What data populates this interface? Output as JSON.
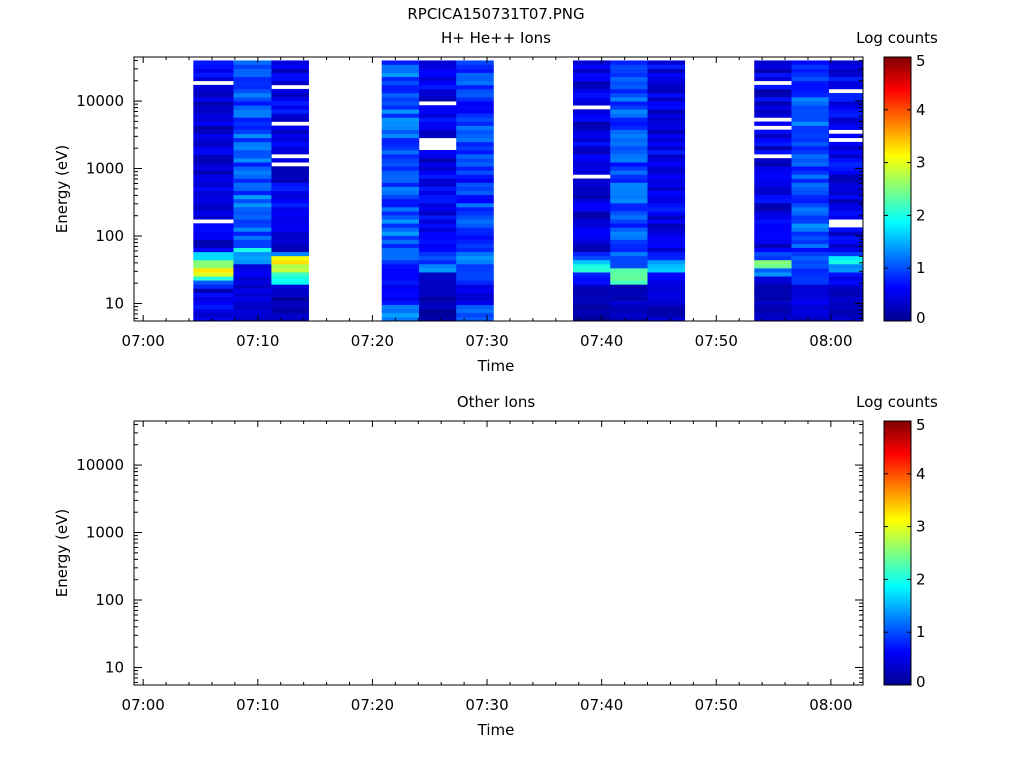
{
  "figure": {
    "title": "RPCICA150731T07.PNG"
  },
  "chart_data": [
    {
      "type": "heatmap",
      "title": "H+ He++ Ions",
      "xlabel": "Time",
      "ylabel": "Energy (eV)",
      "yscale": "log",
      "ylim": [
        5.5,
        45000
      ],
      "xlim": [
        "07:00",
        "08:03"
      ],
      "x_ticks": [
        "07:00",
        "07:10",
        "07:20",
        "07:30",
        "07:40",
        "07:50",
        "08:00"
      ],
      "y_ticks": [
        10,
        100,
        1000,
        10000
      ],
      "colorbar": {
        "label": "Log counts",
        "range": [
          0,
          5
        ],
        "ticks": [
          "0",
          "1",
          "2",
          "3",
          "4",
          "5"
        ]
      },
      "series": [
        {
          "t0": 7.0,
          "t1": 12.6,
          "fill": "dense",
          "base": 0.45,
          "var": 0.3,
          "bright": [
            [
              14.5,
              17.5,
              0.3
            ],
            [
              17.5,
              21,
              0.9
            ],
            [
              21,
              26,
              2.1
            ],
            [
              26,
              34,
              3.1
            ],
            [
              34,
              44,
              2.5
            ],
            [
              44,
              55,
              1.8
            ]
          ],
          "gaps": [
            0.42,
            0.58,
            0.66,
            0.77
          ]
        },
        {
          "t0": 12.6,
          "t1": 17.9,
          "fill": "full",
          "base": 1.05,
          "var": 0.35,
          "bright": [
            [
              5.5,
              9,
              0.3
            ],
            [
              9,
              18,
              0.4
            ],
            [
              18,
              40,
              0.5
            ],
            [
              40,
              55,
              1.3
            ],
            [
              55,
              65,
              1.9
            ]
          ],
          "gaps": []
        },
        {
          "t0": 17.9,
          "t1": 23.1,
          "fill": "dense",
          "base": 0.5,
          "var": 0.3,
          "bright": [
            [
              5.5,
              12,
              0.2
            ],
            [
              12,
              20,
              0.45
            ],
            [
              20,
              30,
              2.0
            ],
            [
              30,
              38,
              2.8
            ],
            [
              38,
              48,
              3.2
            ],
            [
              48,
              60,
              1.2
            ]
          ],
          "gaps": [
            0.55,
            0.62,
            0.71,
            0.8
          ]
        },
        {
          "t0": 33.3,
          "t1": 38.5,
          "fill": "full",
          "base": 1.05,
          "var": 0.35,
          "bright": [
            [
              5.5,
              9,
              1.3
            ],
            [
              9,
              18,
              0.6
            ],
            [
              18,
              40,
              0.6
            ],
            [
              40,
              60,
              1.0
            ]
          ],
          "gaps": []
        },
        {
          "t0": 38.5,
          "t1": 43.7,
          "fill": "dense",
          "base": 0.5,
          "var": 0.3,
          "bright": [
            [
              5.5,
              12,
              0.2
            ],
            [
              12,
              30,
              0.4
            ],
            [
              30,
              40,
              1.3
            ],
            [
              40,
              60,
              0.9
            ]
          ],
          "gaps": [
            0.5,
            0.6,
            0.71,
            0.83
          ]
        },
        {
          "t0": 43.7,
          "t1": 48.9,
          "fill": "full",
          "base": 0.9,
          "var": 0.35,
          "bright": [
            [
              5.5,
              9,
              1.1
            ],
            [
              9,
              20,
              0.5
            ],
            [
              20,
              40,
              0.9
            ],
            [
              40,
              60,
              1.3
            ]
          ],
          "gaps": []
        },
        {
          "t0": 60.0,
          "t1": 65.2,
          "fill": "dense",
          "base": 0.45,
          "var": 0.3,
          "bright": [
            [
              5.5,
              9,
              0.2
            ],
            [
              9,
              20,
              0.3
            ],
            [
              20,
              28,
              0.7
            ],
            [
              28,
              36,
              2.0
            ],
            [
              36,
              44,
              1.5
            ],
            [
              44,
              60,
              0.9
            ]
          ],
          "gaps": [
            0.5,
            0.6,
            0.7,
            0.8
          ]
        },
        {
          "t0": 65.2,
          "t1": 70.4,
          "fill": "full",
          "base": 1.0,
          "var": 0.35,
          "bright": [
            [
              5.5,
              9,
              0.3
            ],
            [
              9,
              18,
              0.3
            ],
            [
              18,
              35,
              2.3
            ],
            [
              35,
              60,
              1.1
            ]
          ],
          "gaps": []
        },
        {
          "t0": 70.4,
          "t1": 75.6,
          "fill": "dense",
          "base": 0.5,
          "var": 0.3,
          "bright": [
            [
              5.5,
              12,
              0.3
            ],
            [
              12,
              20,
              0.4
            ],
            [
              20,
              28,
              0.5
            ],
            [
              28,
              38,
              1.5
            ],
            [
              38,
              46,
              1.4
            ],
            [
              46,
              60,
              0.7
            ]
          ],
          "gaps": [
            0.55,
            0.65,
            0.75
          ]
        },
        {
          "t0": 85.3,
          "t1": 90.5,
          "fill": "dense",
          "base": 0.45,
          "var": 0.3,
          "bright": [
            [
              5.5,
              9,
              0.3
            ],
            [
              9,
              18,
              0.3
            ],
            [
              18,
              26,
              0.5
            ],
            [
              26,
              34,
              1.2
            ],
            [
              34,
              45,
              2.4
            ],
            [
              45,
              60,
              0.9
            ]
          ],
          "gaps": [
            0.5,
            0.6,
            0.68,
            0.78
          ]
        },
        {
          "t0": 90.5,
          "t1": 95.7,
          "fill": "full",
          "base": 1.0,
          "var": 0.35,
          "bright": [
            [
              5.5,
              9,
              0.4
            ],
            [
              9,
              20,
              0.5
            ],
            [
              20,
              35,
              0.9
            ],
            [
              35,
              60,
              1.0
            ]
          ],
          "gaps": []
        },
        {
          "t0": 95.7,
          "t1": 101.0,
          "fill": "dense",
          "base": 0.5,
          "var": 0.3,
          "bright": [
            [
              5.5,
              12,
              0.3
            ],
            [
              12,
              20,
              0.3
            ],
            [
              20,
              30,
              0.6
            ],
            [
              30,
              38,
              1.4
            ],
            [
              38,
              48,
              1.9
            ],
            [
              48,
              60,
              0.9
            ]
          ],
          "gaps": [
            0.5,
            0.63,
            0.76
          ]
        }
      ]
    },
    {
      "type": "heatmap",
      "title": "Other Ions",
      "xlabel": "Time",
      "ylabel": "Energy (eV)",
      "yscale": "log",
      "ylim": [
        5.5,
        45000
      ],
      "xlim": [
        "07:00",
        "08:03"
      ],
      "x_ticks": [
        "07:00",
        "07:10",
        "07:20",
        "07:30",
        "07:40",
        "07:50",
        "08:00"
      ],
      "y_ticks": [
        10,
        100,
        1000,
        10000
      ],
      "colorbar": {
        "label": "Log counts",
        "range": [
          0,
          5
        ],
        "ticks": [
          "0",
          "1",
          "2",
          "3",
          "4",
          "5"
        ]
      }
    }
  ]
}
